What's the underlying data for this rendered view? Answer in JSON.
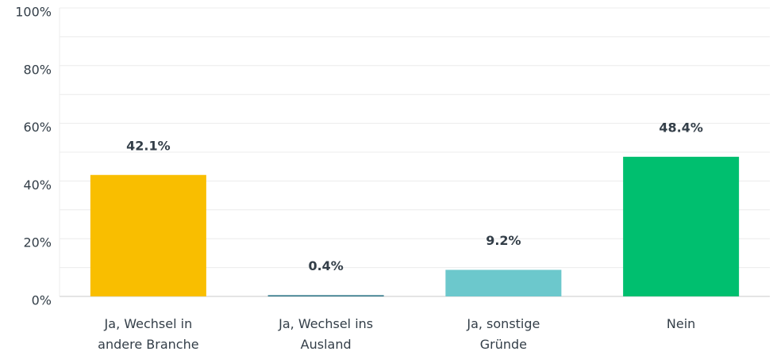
{
  "chart_data": {
    "type": "bar",
    "categories": [
      "Ja, Wechsel in andere Branche",
      "Ja, Wechsel ins Ausland",
      "Ja, sonstige Gründe",
      "Nein"
    ],
    "values": [
      42.1,
      0.4,
      9.2,
      48.4
    ],
    "value_labels": [
      "42.1%",
      "0.4%",
      "9.2%",
      "48.4%"
    ],
    "colors": [
      "#f9be00",
      "#1f6c80",
      "#6cc8cc",
      "#00bf6f"
    ],
    "ylim": [
      0,
      100
    ],
    "yticks": [
      {
        "value": 0,
        "label": "0%"
      },
      {
        "value": 20,
        "label": "20%"
      },
      {
        "value": 40,
        "label": "40%"
      },
      {
        "value": 60,
        "label": "60%"
      },
      {
        "value": 80,
        "label": "80%"
      },
      {
        "value": 100,
        "label": "100%"
      }
    ],
    "minor_yticks": [
      10,
      30,
      50,
      70,
      90
    ],
    "grid": true
  }
}
